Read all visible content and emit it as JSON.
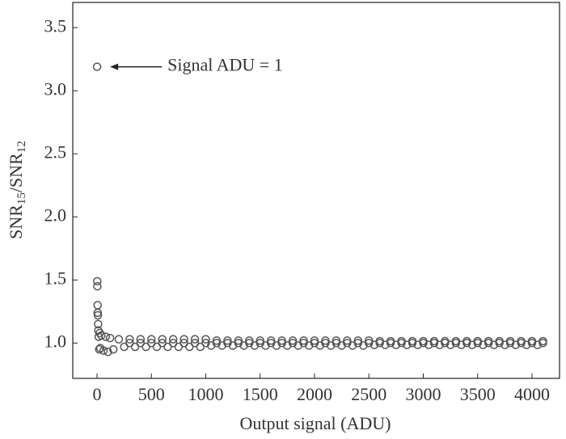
{
  "chart_data": {
    "type": "scatter",
    "x_label": "Output signal (ADU)",
    "y_label": [
      "SNR",
      "15",
      "/SNR",
      "12"
    ],
    "annotation": {
      "text": "Signal ADU = 1",
      "x": 1,
      "y": 3.19
    },
    "color": "#555555",
    "xlim": [
      -223,
      4253
    ],
    "ylim": [
      0.72,
      3.7
    ],
    "xticks": [
      0,
      500,
      1000,
      1500,
      2000,
      2500,
      3000,
      3500,
      4000
    ],
    "yticks": [
      {
        "value": 1,
        "label": "1.0"
      },
      {
        "value": 1.5,
        "label": "1.5"
      },
      {
        "value": 2,
        "label": "2.0"
      },
      {
        "value": 2.5,
        "label": "2.5"
      },
      {
        "value": 3,
        "label": "3.0"
      },
      {
        "value": 3.5,
        "label": "3.5"
      }
    ],
    "x": [
      1,
      2,
      3,
      5,
      6,
      8,
      10,
      12,
      15,
      20,
      25,
      30,
      40,
      60,
      80,
      100,
      120,
      150,
      200,
      250,
      300,
      350,
      400,
      450,
      500,
      550,
      600,
      650,
      700,
      750,
      800,
      850,
      900,
      950,
      1000,
      1050,
      1100,
      1150,
      1200,
      1250,
      1300,
      1350,
      1400,
      1450,
      1500,
      1550,
      1600,
      1650,
      1700,
      1750,
      1800,
      1850,
      1900,
      1950,
      2000,
      2050,
      2100,
      2150,
      2200,
      2250,
      2300,
      2350,
      2400,
      2450,
      2500,
      2550,
      2600,
      2650,
      2700,
      2750,
      2800,
      2850,
      2900,
      2950,
      3000,
      3050,
      3100,
      3150,
      3200,
      3250,
      3300,
      3350,
      3400,
      3450,
      3500,
      3550,
      3600,
      3650,
      3700,
      3750,
      3800,
      3850,
      3900,
      3950,
      4000,
      4050,
      4100,
      300,
      400,
      500,
      600,
      700,
      800,
      900,
      1000,
      1100,
      1200,
      1300,
      1400,
      1500,
      1600,
      1700,
      1800,
      1900,
      2000,
      2100,
      2200,
      2300,
      2400,
      2500,
      2600,
      2700,
      2800,
      2900,
      3000,
      3100,
      3200,
      3300,
      3400,
      3500,
      3600,
      3700,
      3800,
      3900,
      4000,
      4100
    ],
    "y": [
      3.19,
      1.49,
      1.45,
      1.3,
      1.24,
      1.22,
      1.15,
      1.1,
      1.05,
      0.95,
      1.08,
      0.96,
      1.06,
      0.94,
      1.05,
      0.93,
      1.04,
      0.95,
      1.03,
      0.97,
      1.03,
      0.97,
      1.03,
      0.97,
      1.03,
      0.97,
      1.03,
      0.97,
      1.03,
      0.97,
      1.03,
      0.97,
      1.03,
      0.97,
      1.03,
      0.98,
      1.02,
      0.98,
      1.02,
      0.98,
      1.02,
      0.98,
      1.02,
      0.98,
      1.02,
      0.98,
      1.02,
      0.98,
      1.02,
      0.98,
      1.02,
      0.98,
      1.02,
      0.98,
      1.02,
      0.98,
      1.02,
      0.98,
      1.02,
      0.98,
      1.02,
      0.98,
      1.02,
      0.98,
      1.02,
      0.985,
      1.015,
      0.985,
      1.015,
      0.985,
      1.015,
      0.985,
      1.015,
      0.985,
      1.015,
      0.985,
      1.015,
      0.985,
      1.015,
      0.985,
      1.015,
      0.985,
      1.015,
      0.985,
      1.015,
      0.985,
      1.015,
      0.985,
      1.015,
      0.985,
      1.015,
      0.985,
      1.015,
      0.985,
      1.015,
      0.985,
      1.015,
      1,
      1,
      1,
      1,
      1,
      1,
      1,
      1,
      1,
      1,
      1,
      1,
      1,
      1,
      1,
      1,
      1,
      1,
      1,
      1,
      1,
      1,
      1,
      1,
      1,
      1,
      1,
      1,
      1,
      1,
      1,
      1,
      1,
      1,
      1,
      1,
      1,
      1,
      1
    ]
  }
}
